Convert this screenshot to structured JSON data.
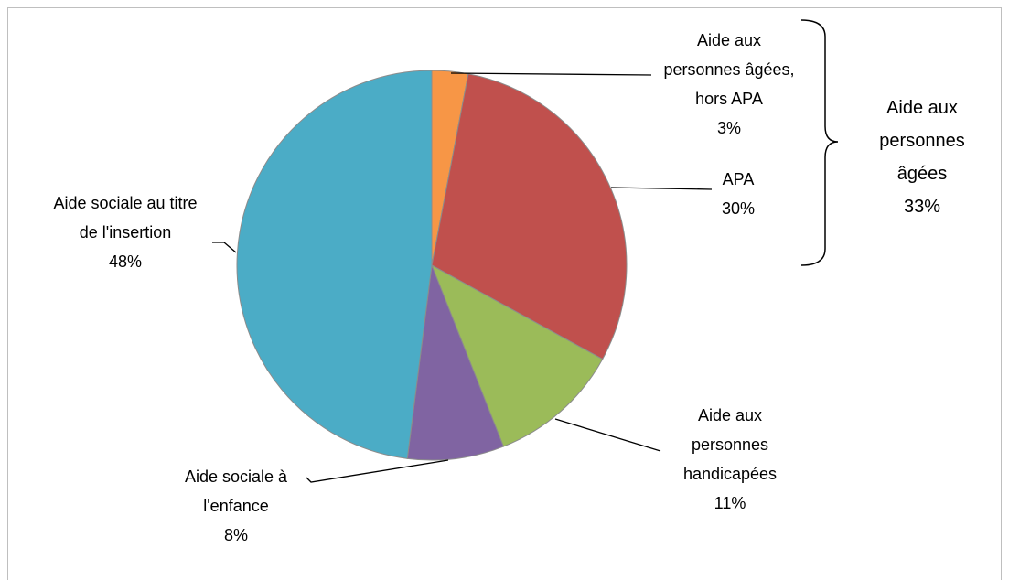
{
  "chart_data": {
    "type": "pie",
    "categories": [
      "Aide aux personnes âgées, hors APA",
      "APA",
      "Aide aux personnes handicapées",
      "Aide sociale à l'enfance",
      "Aide sociale au titre de l'insertion"
    ],
    "values": [
      3,
      30,
      11,
      8,
      48
    ],
    "value_labels": [
      "3%",
      "30%",
      "11%",
      "8%",
      "48%"
    ],
    "colors": [
      "#f79646",
      "#c0504d",
      "#9bbb59",
      "#8064a2",
      "#4bacc6"
    ],
    "annotation": "Aide aux personnes âgées",
    "annotation_value": 33,
    "annotation_value_label": "33%"
  }
}
